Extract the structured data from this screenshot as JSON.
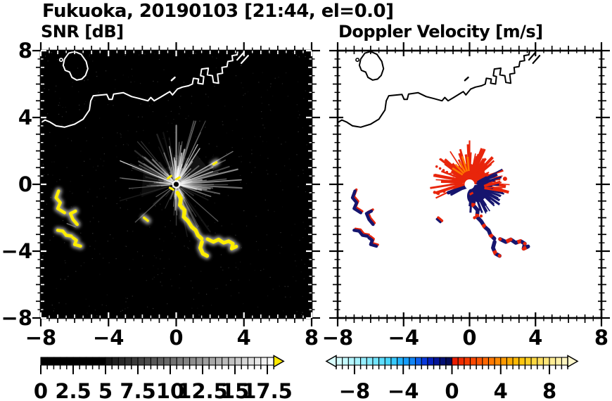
{
  "title": "Fukuoka, 20190103 [21:44, el=0.0]",
  "panels": {
    "left_subtitle": "SNR [dB]",
    "right_subtitle": "Doppler Velocity [m/s]"
  },
  "chart_data": [
    {
      "type": "heatmap",
      "name": "snr",
      "title": "SNR [dB]",
      "xlim": [
        -8,
        8
      ],
      "ylim": [
        -8,
        8
      ],
      "xticks": [
        -8,
        -4,
        0,
        4,
        8
      ],
      "yticks": [
        -8,
        -4,
        0,
        4,
        8
      ],
      "minor_tick_step": 0.5,
      "background": "#000000",
      "radar_center": [
        0,
        0
      ],
      "colorbar": {
        "range": [
          0,
          18
        ],
        "segment_step": 0.5,
        "tick_step": 0.5,
        "major_tick_every": 2.5,
        "tick_values": [
          0,
          2.5,
          5,
          7.5,
          10,
          12.5,
          15,
          17.5
        ],
        "tick_labels": [
          "0",
          "2.5",
          "5",
          "7.5",
          "10",
          "12.5",
          "15",
          "17.5"
        ],
        "palette": "grayscale",
        "black_below": 5,
        "overflow_arrow_color": "#ffe900"
      }
    },
    {
      "type": "heatmap",
      "name": "doppler",
      "title": "Doppler Velocity [m/s]",
      "xlim": [
        -8,
        8
      ],
      "ylim": [
        -8,
        8
      ],
      "xticks": [
        -8,
        -4,
        0,
        4,
        8
      ],
      "yticks": [
        -8,
        -4,
        0,
        4,
        8
      ],
      "minor_tick_step": 0.5,
      "background": "#ffffff",
      "radar_center": [
        0,
        0
      ],
      "negative_color": "#16156e",
      "positive_color": "#e8250b",
      "colorbar": {
        "range": [
          -9.5,
          9.5
        ],
        "segment_step": 0.5,
        "tick_step": 0.5,
        "major_tick_every": 4,
        "tick_values": [
          -8,
          -4,
          0,
          4,
          8
        ],
        "tick_labels": [
          "−8",
          "−4",
          "0",
          "4",
          "8"
        ],
        "stops": [
          [
            -9.5,
            "#d9ffff"
          ],
          [
            -8,
            "#aef4ff"
          ],
          [
            -6.5,
            "#7be8ff"
          ],
          [
            -5,
            "#3ed2ff"
          ],
          [
            -4,
            "#18a9ff"
          ],
          [
            -3,
            "#0d78f2"
          ],
          [
            -2.5,
            "#0a46e8"
          ],
          [
            -2,
            "#0629cf"
          ],
          [
            -1.5,
            "#0416a8"
          ],
          [
            -1,
            "#031185"
          ],
          [
            -0.5,
            "#020d62"
          ],
          [
            -0.01,
            "#05094a"
          ],
          [
            0.01,
            "#e61400"
          ],
          [
            1,
            "#f23300"
          ],
          [
            2,
            "#ff4d00"
          ],
          [
            3,
            "#ff6f00"
          ],
          [
            4,
            "#ff9100"
          ],
          [
            5,
            "#ffb300"
          ],
          [
            6,
            "#ffcb15"
          ],
          [
            7,
            "#ffdc50"
          ],
          [
            8,
            "#ffe98a"
          ],
          [
            9,
            "#fff3b2"
          ],
          [
            9.5,
            "#fff8cd"
          ]
        ]
      }
    }
  ],
  "geo": {
    "coastline": [
      [
        -8.15,
        3.6
      ],
      [
        -7.75,
        3.85
      ],
      [
        -7.45,
        3.72
      ],
      [
        -7.1,
        3.5
      ],
      [
        -6.6,
        3.42
      ],
      [
        -6.0,
        3.6
      ],
      [
        -5.5,
        3.9
      ],
      [
        -5.13,
        4.45
      ],
      [
        -5.05,
        5.0
      ],
      [
        -4.9,
        5.3
      ],
      [
        -4.1,
        5.38
      ],
      [
        -3.97,
        5.08
      ],
      [
        -3.78,
        5.08
      ],
      [
        -3.7,
        5.4
      ],
      [
        -3.12,
        5.48
      ],
      [
        -2.63,
        5.25
      ],
      [
        -2.15,
        5.13
      ],
      [
        -1.67,
        5.0
      ],
      [
        -1.5,
        5.2
      ],
      [
        -1.3,
        5.0
      ],
      [
        -0.92,
        5.22
      ],
      [
        -0.55,
        5.45
      ],
      [
        -0.38,
        5.55
      ],
      [
        -0.22,
        5.35
      ],
      [
        0.07,
        5.7
      ],
      [
        0.36,
        5.82
      ],
      [
        0.73,
        5.9
      ],
      [
        0.95,
        6.0
      ],
      [
        1.02,
        6.35
      ],
      [
        1.32,
        6.3
      ],
      [
        1.28,
        6.05
      ],
      [
        1.58,
        6.0
      ],
      [
        1.63,
        6.45
      ],
      [
        1.44,
        6.5
      ],
      [
        1.5,
        6.9
      ],
      [
        1.9,
        6.95
      ],
      [
        1.84,
        6.55
      ],
      [
        2.14,
        6.5
      ],
      [
        2.2,
        6.1
      ],
      [
        2.5,
        6.05
      ],
      [
        2.44,
        6.6
      ],
      [
        2.74,
        6.65
      ],
      [
        2.7,
        7.0
      ],
      [
        3.0,
        7.05
      ],
      [
        3.05,
        7.35
      ],
      [
        3.34,
        7.4
      ],
      [
        3.3,
        7.7
      ],
      [
        3.6,
        7.75
      ],
      [
        3.66,
        8.1
      ]
    ],
    "island": [
      [
        -6.6,
        7.5
      ],
      [
        -6.35,
        7.85
      ],
      [
        -6.0,
        7.95
      ],
      [
        -5.62,
        7.78
      ],
      [
        -5.32,
        7.35
      ],
      [
        -5.22,
        6.92
      ],
      [
        -5.36,
        6.52
      ],
      [
        -5.58,
        6.3
      ],
      [
        -5.88,
        6.24
      ],
      [
        -6.16,
        6.4
      ],
      [
        -6.3,
        6.72
      ],
      [
        -6.56,
        6.82
      ],
      [
        -6.68,
        7.12
      ]
    ],
    "islet_dot": [
      -6.8,
      7.45
    ],
    "islet_dash": [
      [
        -0.28,
        6.22
      ],
      [
        -0.08,
        6.4
      ]
    ],
    "piers": [
      [
        [
          3.85,
          7.25
        ],
        [
          4.25,
          7.7
        ]
      ],
      [
        [
          3.6,
          7.45
        ],
        [
          4.0,
          7.9
        ]
      ]
    ]
  },
  "echoes": {
    "arcs": [
      [
        [
          -6.95,
          -0.4
        ],
        [
          -7.1,
          -0.8
        ],
        [
          -6.85,
          -1.1
        ],
        [
          -7.0,
          -1.45
        ],
        [
          -6.6,
          -1.7
        ]
      ],
      [
        [
          -5.95,
          -1.6
        ],
        [
          -6.25,
          -1.75
        ],
        [
          -6.1,
          -2.1
        ],
        [
          -5.85,
          -2.4
        ]
      ],
      [
        [
          -7.0,
          -2.75
        ],
        [
          -6.7,
          -2.8
        ],
        [
          -6.5,
          -3.05
        ],
        [
          -6.2,
          -3.1
        ]
      ],
      [
        [
          -6.1,
          -3.2
        ],
        [
          -5.9,
          -3.35
        ],
        [
          -6.0,
          -3.6
        ],
        [
          -5.65,
          -3.7
        ]
      ]
    ],
    "arc_connector": [
      [
        -6.45,
        -2.35
      ],
      [
        -5.95,
        -2.55
      ]
    ],
    "band_main": [
      [
        0.08,
        -0.5
      ],
      [
        0.28,
        -0.85
      ],
      [
        0.22,
        -1.25
      ],
      [
        0.5,
        -1.55
      ],
      [
        0.45,
        -1.95
      ],
      [
        0.7,
        -2.2
      ],
      [
        0.92,
        -2.55
      ],
      [
        1.15,
        -2.75
      ],
      [
        1.28,
        -3.05
      ],
      [
        1.5,
        -3.25
      ]
    ],
    "band_hook": [
      [
        1.52,
        -3.45
      ],
      [
        1.42,
        -3.8
      ],
      [
        1.58,
        -4.15
      ],
      [
        1.82,
        -4.28
      ]
    ],
    "band_branch": [
      [
        1.85,
        -3.28
      ],
      [
        2.2,
        -3.45
      ],
      [
        2.5,
        -3.3
      ],
      [
        2.8,
        -3.5
      ],
      [
        3.1,
        -3.4
      ],
      [
        3.35,
        -3.55
      ],
      [
        3.28,
        -3.85
      ],
      [
        3.55,
        -3.72
      ]
    ],
    "dash": [
      [
        -1.9,
        -2.0
      ],
      [
        -1.68,
        -2.18
      ]
    ],
    "ne_dash": [
      [
        2.2,
        1.2
      ],
      [
        2.38,
        1.32
      ]
    ],
    "center_dashes": [
      [
        [
          -0.5,
          0.35
        ],
        [
          -0.3,
          0.5
        ]
      ],
      [
        [
          0.0,
          0.3
        ],
        [
          0.2,
          0.42
        ]
      ],
      [
        [
          -0.38,
          -0.2
        ],
        [
          -0.18,
          -0.32
        ]
      ]
    ],
    "snr_color": "#ffee00",
    "glow_color": "#ffffff"
  },
  "bursts": {
    "snr_rays": {
      "count": 150,
      "seed": 7,
      "bright_sector": [
        -25,
        95
      ],
      "specials": [
        {
          "a": 157,
          "len": 3.4,
          "w": 1.3,
          "al": 0.8
        },
        {
          "a": 185,
          "len": 2.6,
          "w": 1.1,
          "al": 0.35
        },
        {
          "a": 100,
          "len": 2.1,
          "w": 1.5,
          "al": 0.75
        },
        {
          "a": 62,
          "len": 2.5,
          "w": 1.3,
          "al": 0.7
        },
        {
          "a": 80,
          "len": 1.7,
          "w": 1.6,
          "al": 0.8
        },
        {
          "a": 268,
          "len": 1.35,
          "w": 1.3,
          "al": 0.6
        },
        {
          "a": 212,
          "len": 1.2,
          "w": 1.0,
          "al": 0.4
        },
        {
          "a": 25,
          "len": 2.2,
          "w": 1.2,
          "al": 0.55
        },
        {
          "a": 8,
          "len": 1.6,
          "w": 1.1,
          "al": 0.45
        }
      ],
      "glow_wedges": [
        {
          "a1": 20,
          "a2": 60,
          "len": 2.2,
          "al": 0.07
        },
        {
          "a1": 55,
          "a2": 95,
          "len": 1.8,
          "al": 0.08
        },
        {
          "a1": -20,
          "a2": 20,
          "len": 1.6,
          "al": 0.05
        },
        {
          "a1": 150,
          "a2": 200,
          "len": 2.2,
          "al": 0.05
        },
        {
          "a1": 95,
          "a2": 150,
          "len": 1.3,
          "al": 0.05
        }
      ]
    },
    "doppler": {
      "seed": 11,
      "red_spike_count": 85,
      "navy_spike_count": 65,
      "red_dot": [
        2.15,
        0.33
      ],
      "red_speckles": [
        [
          -1.55,
          -0.42
        ],
        [
          -1.9,
          -0.55
        ],
        [
          -2.12,
          -0.48
        ],
        [
          0.45,
          -1.55
        ],
        [
          0.7,
          -1.9
        ],
        [
          0.3,
          -2.0
        ]
      ],
      "dotted_ray_angle": 152
    }
  },
  "noise": {
    "seed": 3,
    "count": 520
  }
}
